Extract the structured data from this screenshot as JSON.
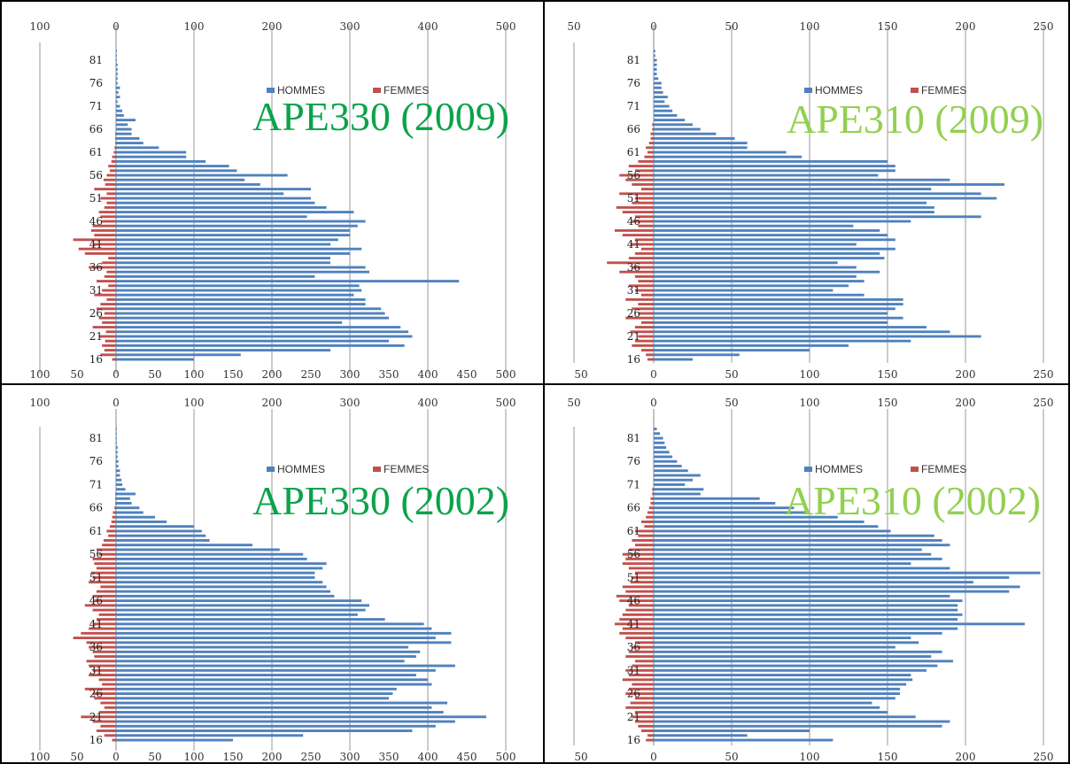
{
  "chart_data": [
    {
      "type": "bar",
      "orientation": "horizontal",
      "title": "APE330 (2009)",
      "title_color": "#0aa34a",
      "top_ticks": [
        "100",
        "0",
        "100",
        "200",
        "300",
        "400",
        "500"
      ],
      "bottom_ticks": [
        "100",
        "50",
        "0",
        "50",
        "100",
        "150",
        "200",
        "250",
        "300",
        "350",
        "400",
        "450",
        "500"
      ],
      "age_labels": [
        "81",
        "76",
        "71",
        "66",
        "61",
        "56",
        "51",
        "46",
        "41",
        "36",
        "31",
        "26",
        "21",
        "16"
      ],
      "xlim": [
        -100,
        500
      ],
      "y_range": [
        16,
        83
      ],
      "series": [
        {
          "name": "HOMMES",
          "color": "#4f81bd",
          "values": [
            100,
            160,
            275,
            370,
            350,
            380,
            375,
            365,
            290,
            350,
            345,
            340,
            320,
            320,
            305,
            315,
            312,
            440,
            255,
            325,
            320,
            275,
            275,
            300,
            315,
            275,
            285,
            300,
            300,
            310,
            320,
            245,
            305,
            270,
            255,
            250,
            215,
            250,
            185,
            165,
            220,
            155,
            145,
            115,
            90,
            90,
            55,
            35,
            30,
            20,
            20,
            15,
            25,
            10,
            8,
            5,
            2,
            5,
            3,
            5,
            2,
            2,
            2,
            2,
            2,
            1,
            1,
            1
          ]
        },
        {
          "name": "FEMMES",
          "color": "#c0504d",
          "values": [
            5,
            20,
            15,
            18,
            14,
            22,
            13,
            30,
            18,
            22,
            15,
            25,
            20,
            12,
            28,
            18,
            10,
            25,
            15,
            12,
            35,
            18,
            10,
            40,
            48,
            30,
            55,
            28,
            32,
            30,
            18,
            20,
            22,
            15,
            12,
            20,
            12,
            28,
            14,
            16,
            12,
            8,
            10,
            6,
            5,
            3,
            2,
            1,
            1,
            1,
            0,
            0,
            0,
            0,
            0,
            0,
            0,
            0,
            0,
            0,
            0,
            0,
            0,
            0,
            0,
            0,
            0,
            0
          ]
        }
      ]
    },
    {
      "type": "bar",
      "orientation": "horizontal",
      "title": "APE310 (2009)",
      "title_color": "#92d050",
      "top_ticks": [
        "50",
        "0",
        "50",
        "100",
        "150",
        "200",
        "250"
      ],
      "bottom_ticks": [
        "50",
        "0",
        "50",
        "100",
        "150",
        "200",
        "250"
      ],
      "age_labels": [
        "81",
        "76",
        "71",
        "66",
        "61",
        "56",
        "51",
        "46",
        "41",
        "36",
        "31",
        "26",
        "21",
        "16"
      ],
      "xlim": [
        -50,
        250
      ],
      "y_range": [
        16,
        83
      ],
      "series": [
        {
          "name": "HOMMES",
          "color": "#4f81bd",
          "values": [
            25,
            55,
            100,
            125,
            165,
            210,
            190,
            175,
            150,
            160,
            150,
            155,
            160,
            160,
            135,
            115,
            125,
            135,
            130,
            145,
            130,
            118,
            148,
            145,
            155,
            130,
            155,
            150,
            145,
            128,
            165,
            210,
            180,
            180,
            175,
            220,
            210,
            178,
            225,
            190,
            144,
            155,
            155,
            150,
            95,
            85,
            60,
            60,
            52,
            40,
            30,
            25,
            20,
            15,
            12,
            10,
            7,
            9,
            6,
            5,
            5,
            3,
            2,
            2,
            2,
            2,
            1,
            1
          ]
        },
        {
          "name": "FEMMES",
          "color": "#c0504d",
          "values": [
            4,
            5,
            8,
            14,
            12,
            10,
            15,
            12,
            8,
            18,
            10,
            14,
            10,
            18,
            8,
            12,
            16,
            10,
            12,
            22,
            14,
            30,
            16,
            12,
            8,
            15,
            12,
            20,
            25,
            10,
            14,
            12,
            20,
            24,
            14,
            12,
            22,
            8,
            14,
            18,
            22,
            12,
            16,
            10,
            6,
            4,
            5,
            3,
            2,
            2,
            1,
            1,
            0,
            0,
            0,
            0,
            0,
            0,
            0,
            0,
            0,
            0,
            0,
            0,
            0,
            0,
            0,
            0
          ]
        }
      ]
    },
    {
      "type": "bar",
      "orientation": "horizontal",
      "title": "APE330 (2002)",
      "title_color": "#0aa34a",
      "top_ticks": [
        "100",
        "0",
        "100",
        "200",
        "300",
        "400",
        "500"
      ],
      "bottom_ticks": [
        "100",
        "50",
        "0",
        "50",
        "100",
        "150",
        "200",
        "250",
        "300",
        "350",
        "400",
        "450",
        "500"
      ],
      "age_labels": [
        "81",
        "76",
        "71",
        "66",
        "61",
        "56",
        "51",
        "46",
        "41",
        "36",
        "31",
        "26",
        "21",
        "16"
      ],
      "xlim": [
        -100,
        500
      ],
      "y_range": [
        16,
        83
      ],
      "series": [
        {
          "name": "HOMMES",
          "color": "#4f81bd",
          "values": [
            150,
            240,
            380,
            410,
            435,
            475,
            420,
            405,
            425,
            350,
            355,
            360,
            405,
            400,
            385,
            410,
            435,
            370,
            385,
            390,
            375,
            430,
            410,
            430,
            405,
            395,
            345,
            310,
            320,
            325,
            315,
            280,
            275,
            270,
            265,
            255,
            255,
            265,
            270,
            245,
            240,
            210,
            175,
            120,
            115,
            110,
            100,
            65,
            50,
            35,
            30,
            20,
            18,
            25,
            12,
            8,
            7,
            5,
            5,
            3,
            3,
            2,
            2,
            2,
            1,
            1,
            1,
            1
          ]
        },
        {
          "name": "FEMMES",
          "color": "#c0504d",
          "values": [
            5,
            15,
            25,
            20,
            30,
            45,
            22,
            15,
            20,
            28,
            30,
            40,
            18,
            22,
            35,
            30,
            35,
            38,
            28,
            30,
            35,
            38,
            55,
            45,
            35,
            30,
            25,
            22,
            30,
            40,
            28,
            30,
            25,
            20,
            35,
            30,
            32,
            25,
            28,
            30,
            22,
            25,
            18,
            16,
            10,
            12,
            8,
            6,
            5,
            4,
            2,
            1,
            1,
            1,
            0,
            0,
            0,
            0,
            0,
            0,
            0,
            0,
            0,
            0,
            0,
            0,
            0,
            0
          ]
        }
      ]
    },
    {
      "type": "bar",
      "orientation": "horizontal",
      "title": "APE310 (2002)",
      "title_color": "#92d050",
      "top_ticks": [
        "50",
        "0",
        "50",
        "100",
        "150",
        "200",
        "250"
      ],
      "bottom_ticks": [
        "50",
        "0",
        "50",
        "100",
        "150",
        "200",
        "250"
      ],
      "age_labels": [
        "81",
        "76",
        "71",
        "66",
        "61",
        "56",
        "51",
        "46",
        "41",
        "36",
        "31",
        "26",
        "21",
        "16"
      ],
      "xlim": [
        -50,
        250
      ],
      "y_range": [
        16,
        83
      ],
      "series": [
        {
          "name": "HOMMES",
          "color": "#4f81bd",
          "values": [
            115,
            60,
            100,
            185,
            190,
            168,
            150,
            145,
            140,
            155,
            158,
            158,
            162,
            166,
            165,
            175,
            182,
            192,
            178,
            185,
            155,
            170,
            165,
            185,
            195,
            238,
            195,
            198,
            195,
            195,
            198,
            190,
            228,
            235,
            205,
            228,
            248,
            190,
            165,
            185,
            178,
            172,
            190,
            185,
            180,
            152,
            144,
            135,
            118,
            100,
            90,
            78,
            68,
            30,
            32,
            20,
            25,
            30,
            22,
            18,
            15,
            12,
            10,
            8,
            7,
            6,
            4,
            2
          ]
        },
        {
          "name": "FEMMES",
          "color": "#c0504d",
          "values": [
            5,
            4,
            8,
            10,
            12,
            14,
            12,
            18,
            15,
            12,
            18,
            16,
            14,
            20,
            16,
            18,
            14,
            12,
            18,
            16,
            14,
            12,
            18,
            22,
            20,
            25,
            22,
            20,
            18,
            16,
            22,
            24,
            18,
            20,
            15,
            14,
            12,
            16,
            20,
            18,
            20,
            16,
            12,
            14,
            10,
            12,
            6,
            8,
            5,
            4,
            3,
            2,
            2,
            1,
            1,
            0,
            0,
            0,
            0,
            0,
            0,
            0,
            0,
            0,
            0,
            0,
            0,
            0
          ]
        }
      ]
    }
  ],
  "legend": {
    "hommes": "HOMMES",
    "femmes": "FEMMES"
  }
}
